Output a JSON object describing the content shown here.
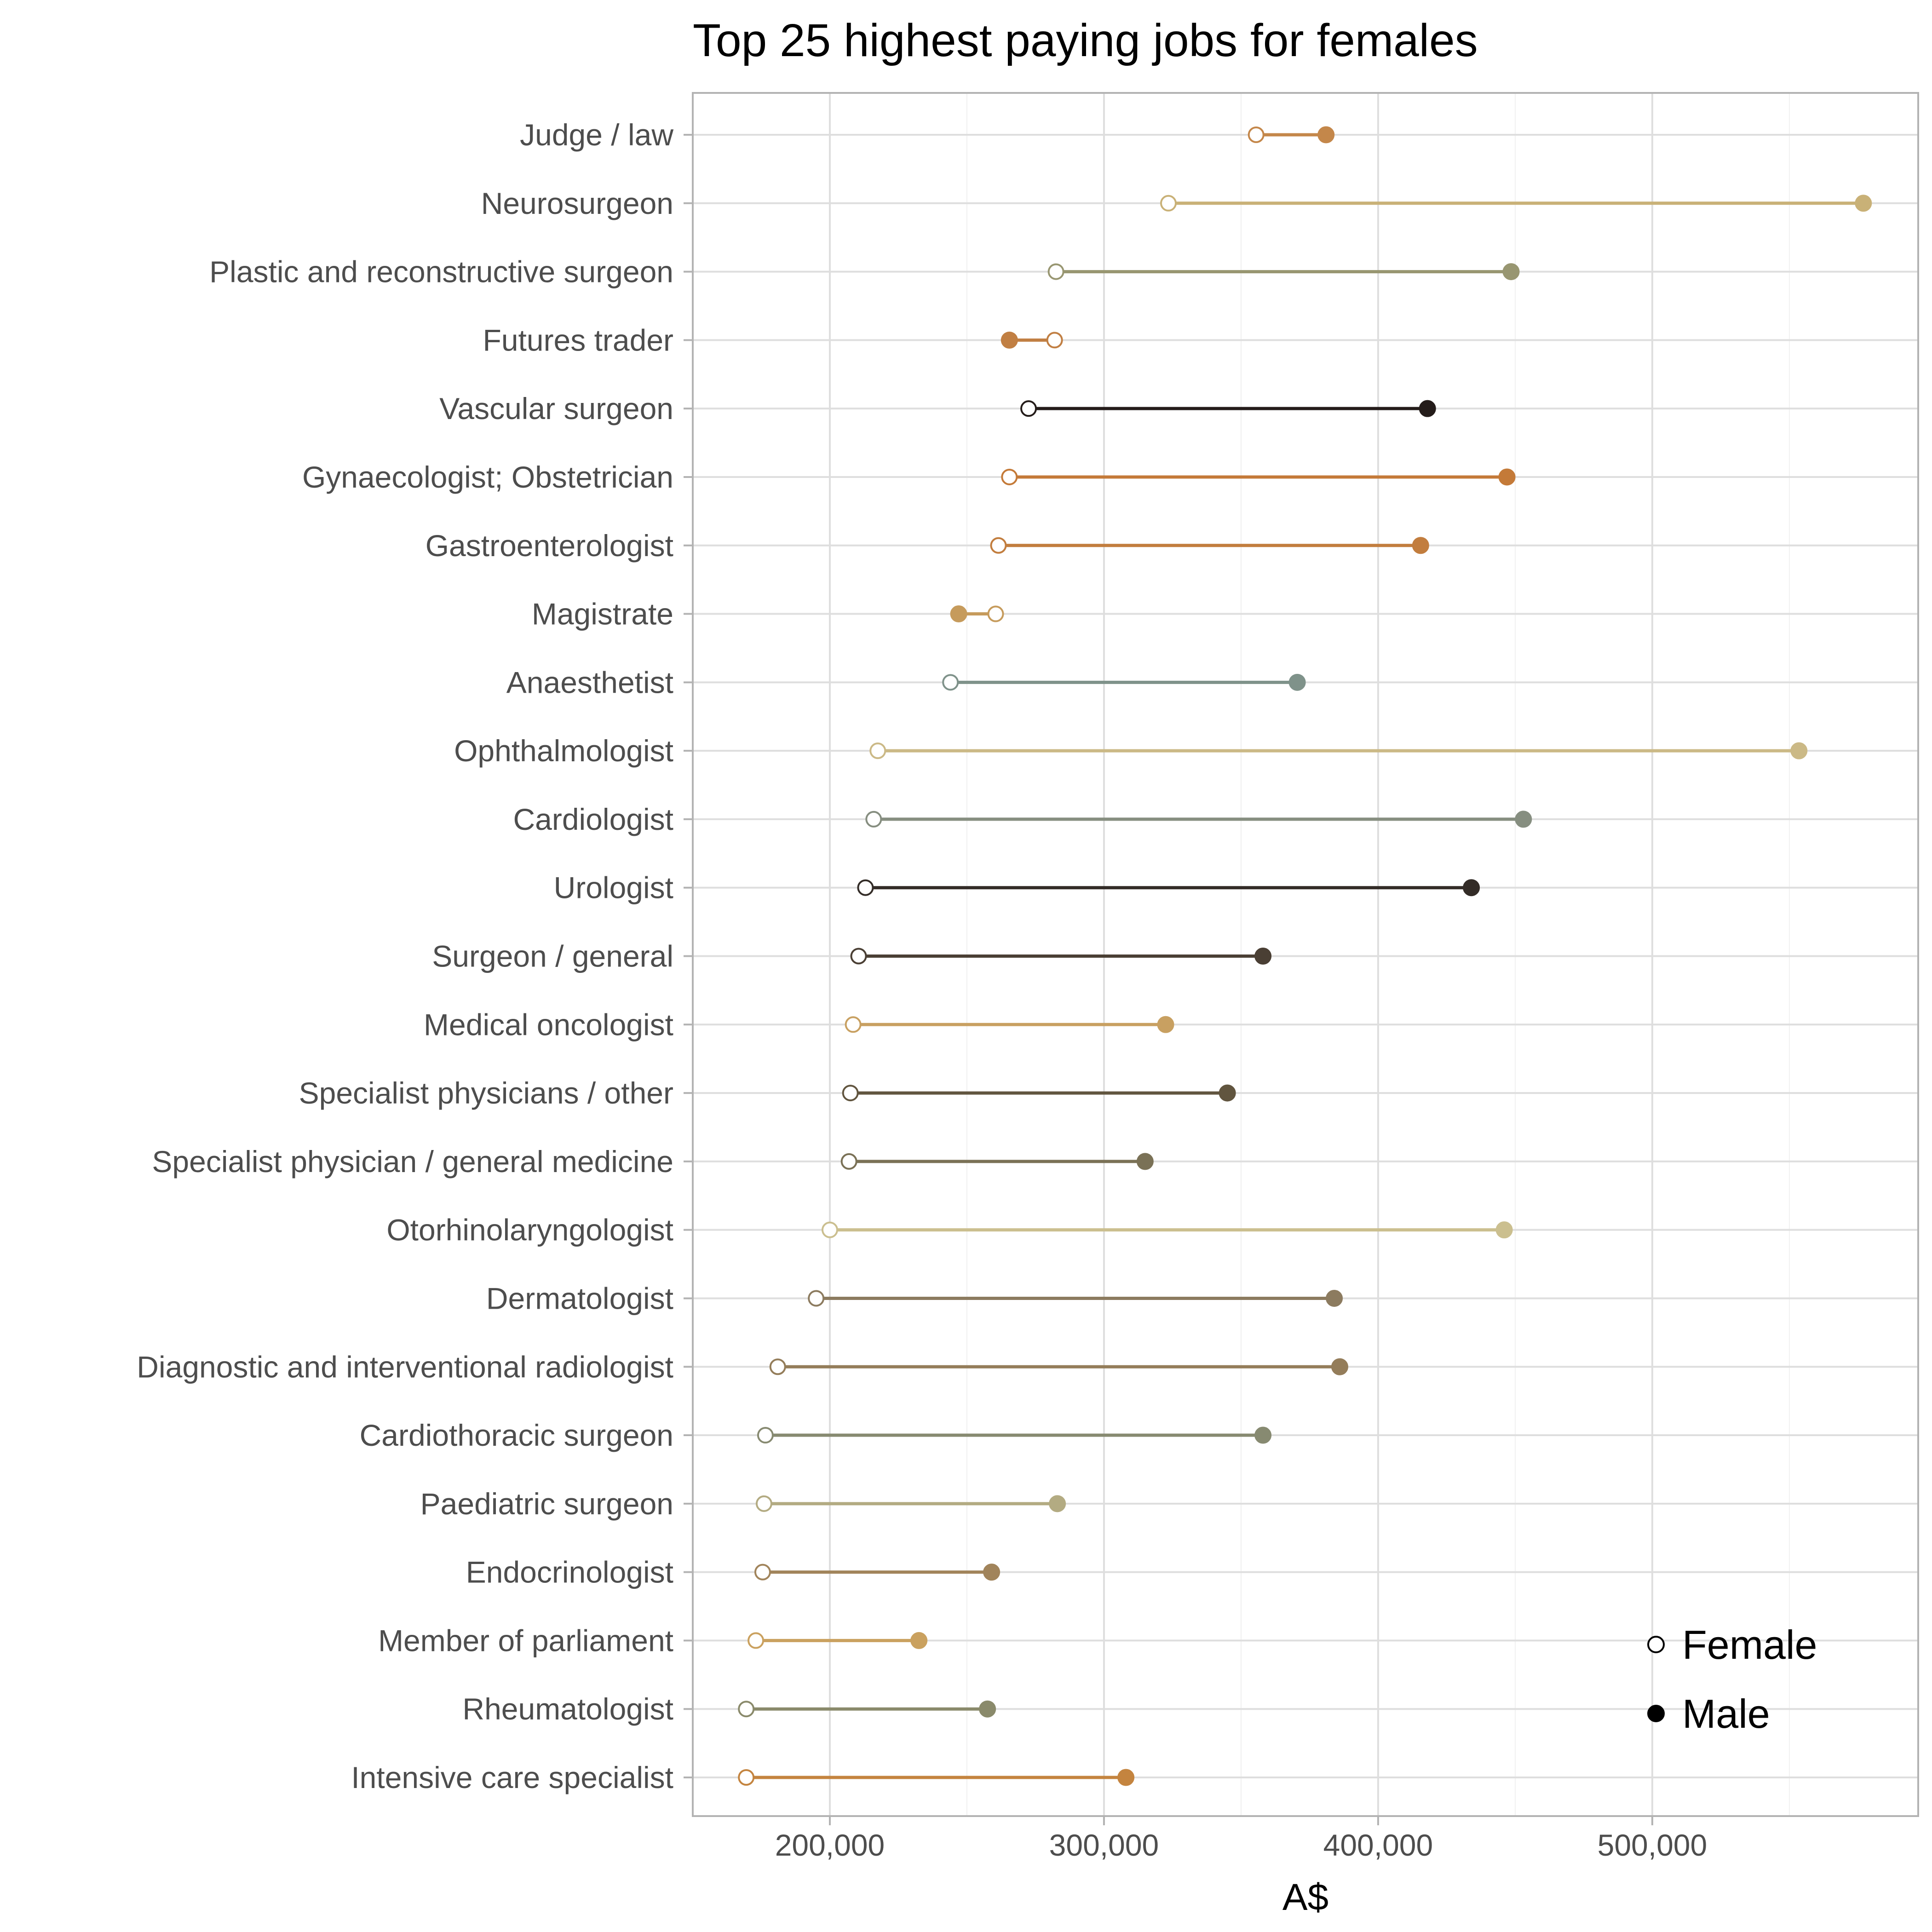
{
  "chart_data": {
    "type": "dumbbell",
    "title": "Top 25 highest paying jobs for females",
    "xlabel": "A$",
    "ylabel": "",
    "xlim": [
      150000,
      597000
    ],
    "x_ticks": [
      200000,
      300000,
      400000,
      500000
    ],
    "x_tick_labels": [
      "200,000",
      "300,000",
      "400,000",
      "500,000"
    ],
    "grid": true,
    "legend": {
      "position": "bottom-right",
      "entries": [
        {
          "label": "Female",
          "marker": "open-circle"
        },
        {
          "label": "Male",
          "marker": "filled-circle"
        }
      ]
    },
    "series": [
      {
        "name": "Female",
        "key": "female"
      },
      {
        "name": "Male",
        "key": "male"
      }
    ],
    "rows": [
      {
        "job": "Judge / law",
        "female": 355500,
        "male": 381000,
        "color": "#c4874a"
      },
      {
        "job": "Neurosurgeon",
        "female": 323500,
        "male": 577000,
        "color": "#c9b177"
      },
      {
        "job": "Plastic and reconstructive surgeon",
        "female": 282500,
        "male": 448500,
        "color": "#989671"
      },
      {
        "job": "Futures trader",
        "female": 282000,
        "male": 265500,
        "color": "#c17f43"
      },
      {
        "job": "Vascular surgeon",
        "female": 272500,
        "male": 418000,
        "color": "#241c1a"
      },
      {
        "job": "Gynaecologist; Obstetrician",
        "female": 265500,
        "male": 447000,
        "color": "#c47a38"
      },
      {
        "job": "Gastroenterologist",
        "female": 261500,
        "male": 415500,
        "color": "#c27d3e"
      },
      {
        "job": "Magistrate",
        "female": 260500,
        "male": 247000,
        "color": "#c69b5c"
      },
      {
        "job": "Anaesthetist",
        "female": 244000,
        "male": 370500,
        "color": "#7f928a"
      },
      {
        "job": "Ophthalmologist",
        "female": 217500,
        "male": 553500,
        "color": "#cbb986"
      },
      {
        "job": "Cardiologist",
        "female": 216000,
        "male": 453000,
        "color": "#868e80"
      },
      {
        "job": "Urologist",
        "female": 213000,
        "male": 434000,
        "color": "#332c27"
      },
      {
        "job": "Surgeon / general",
        "female": 210500,
        "male": 358000,
        "color": "#4a3f34"
      },
      {
        "job": "Medical oncologist",
        "female": 208500,
        "male": 322500,
        "color": "#c8a061"
      },
      {
        "job": "Specialist physicians / other",
        "female": 207500,
        "male": 345000,
        "color": "#61553f"
      },
      {
        "job": "Specialist physician / general medicine",
        "female": 207000,
        "male": 315000,
        "color": "#7a7156"
      },
      {
        "job": "Otorhinolaryngologist",
        "female": 200000,
        "male": 446000,
        "color": "#cbbf8f"
      },
      {
        "job": "Dermatologist",
        "female": 195000,
        "male": 384000,
        "color": "#8c7b5f"
      },
      {
        "job": "Diagnostic and interventional radiologist",
        "female": 181000,
        "male": 386000,
        "color": "#947d5a"
      },
      {
        "job": "Cardiothoracic surgeon",
        "female": 176500,
        "male": 358000,
        "color": "#878a71"
      },
      {
        "job": "Paediatric surgeon",
        "female": 176000,
        "male": 283000,
        "color": "#b3ab82"
      },
      {
        "job": "Endocrinologist",
        "female": 175500,
        "male": 259000,
        "color": "#a1845b"
      },
      {
        "job": "Member of parliament",
        "female": 173000,
        "male": 232500,
        "color": "#caa15f"
      },
      {
        "job": "Rheumatologist",
        "female": 169500,
        "male": 257500,
        "color": "#8a8a6b"
      },
      {
        "job": "Intensive care specialist",
        "female": 169500,
        "male": 308000,
        "color": "#c4843f"
      }
    ]
  }
}
